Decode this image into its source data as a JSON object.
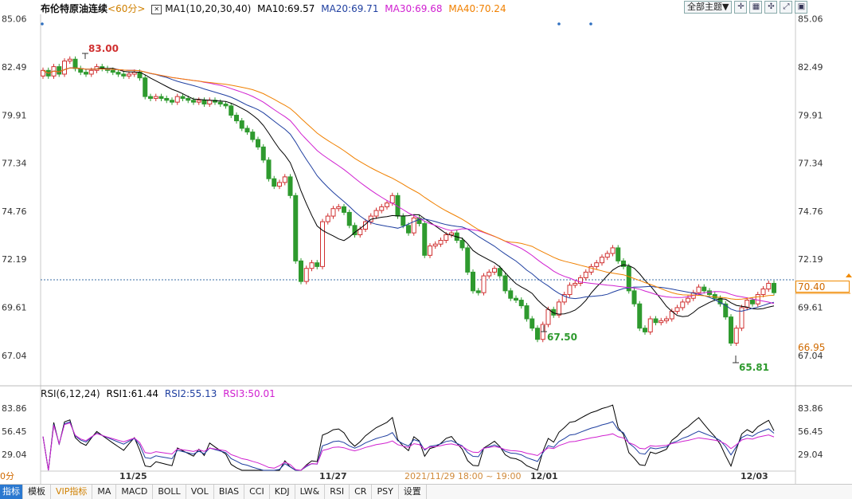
{
  "legend": {
    "title": "布伦特原油连续",
    "period": "<60分>",
    "ma_label": "MA1(10,20,30,40)",
    "ma10": "MA10:69.57",
    "ma20": "MA20:69.71",
    "ma30": "MA30:69.68",
    "ma40": "MA40:70.24"
  },
  "toolbar": {
    "theme_select": "全部主题▼",
    "icons": [
      "zoom-in-icon",
      "zoom-out-icon",
      "fit-icon",
      "expand-icon",
      "settings-icon"
    ]
  },
  "rsi_legend": {
    "label": "RSI(6,12,24)",
    "rsi1": "RSI1:61.44",
    "rsi2": "RSI2:55.13",
    "rsi3": "RSI3:50.01"
  },
  "price_axis": [
    "85.06",
    "82.49",
    "79.91",
    "77.34",
    "74.76",
    "72.19",
    "69.61",
    "67.04"
  ],
  "rsi_axis": [
    "83.86",
    "56.45",
    "29.04"
  ],
  "current_price": "70.40",
  "low_price_tag": "66.95",
  "annotations": {
    "high": "83.00",
    "low1": "67.50",
    "low2": "65.81"
  },
  "xaxis": {
    "d1": "11/25",
    "d2": "11/27",
    "crosshair": "2021/11/29 18:00 ~ 19:00",
    "d3": "12/01",
    "d4": "12/03",
    "edge": "0分"
  },
  "tabs": [
    "指标",
    "模板",
    "VIP指标",
    "MA",
    "MACD",
    "BOLL",
    "VOL",
    "BIAS",
    "CCI",
    "KDJ",
    "LW&",
    "RSI",
    "CR",
    "PSY",
    "设置"
  ],
  "colors": {
    "up": "#d03030",
    "down": "#2e9a2e",
    "ma10": "#000000",
    "ma20": "#1f3fa0",
    "ma30": "#d020d0",
    "ma40": "#f08000"
  },
  "chart_data": {
    "type": "candlestick",
    "title": "布伦特原油连续 60分",
    "ylim": [
      65.5,
      85.3
    ],
    "close": [
      82.3,
      82.0,
      82.5,
      82.1,
      82.8,
      82.9,
      82.4,
      82.2,
      82.1,
      82.3,
      82.5,
      82.4,
      82.3,
      82.2,
      82.1,
      82.0,
      82.1,
      82.2,
      81.9,
      80.9,
      80.8,
      80.9,
      80.8,
      80.7,
      80.6,
      80.9,
      80.8,
      80.7,
      80.6,
      80.7,
      80.5,
      80.7,
      80.6,
      80.5,
      80.4,
      79.9,
      79.6,
      79.2,
      79.0,
      78.6,
      78.2,
      77.5,
      76.5,
      76.1,
      76.3,
      76.6,
      75.6,
      72.1,
      71.0,
      71.7,
      72.0,
      71.8,
      74.2,
      74.5,
      74.9,
      75.0,
      74.7,
      74.0,
      73.5,
      73.8,
      74.2,
      74.5,
      74.8,
      75.0,
      75.2,
      75.6,
      74.5,
      74.0,
      73.6,
      74.4,
      74.1,
      72.4,
      72.9,
      73.0,
      73.2,
      73.5,
      73.6,
      73.2,
      72.8,
      71.5,
      70.5,
      70.4,
      71.3,
      71.5,
      71.7,
      71.3,
      70.5,
      70.1,
      70.0,
      69.7,
      69.0,
      68.5,
      67.9,
      68.7,
      69.5,
      69.2,
      69.9,
      70.3,
      70.8,
      70.9,
      71.2,
      71.5,
      71.8,
      72.0,
      72.3,
      72.5,
      72.8,
      72.1,
      71.8,
      70.5,
      69.8,
      68.5,
      68.3,
      69.0,
      68.8,
      68.9,
      69.0,
      69.4,
      69.6,
      69.9,
      70.1,
      70.4,
      70.7,
      70.5,
      70.3,
      70.1,
      69.8,
      69.1,
      67.7,
      68.5,
      69.6,
      70.0,
      69.8,
      70.3,
      70.6,
      70.9,
      70.4
    ]
  }
}
